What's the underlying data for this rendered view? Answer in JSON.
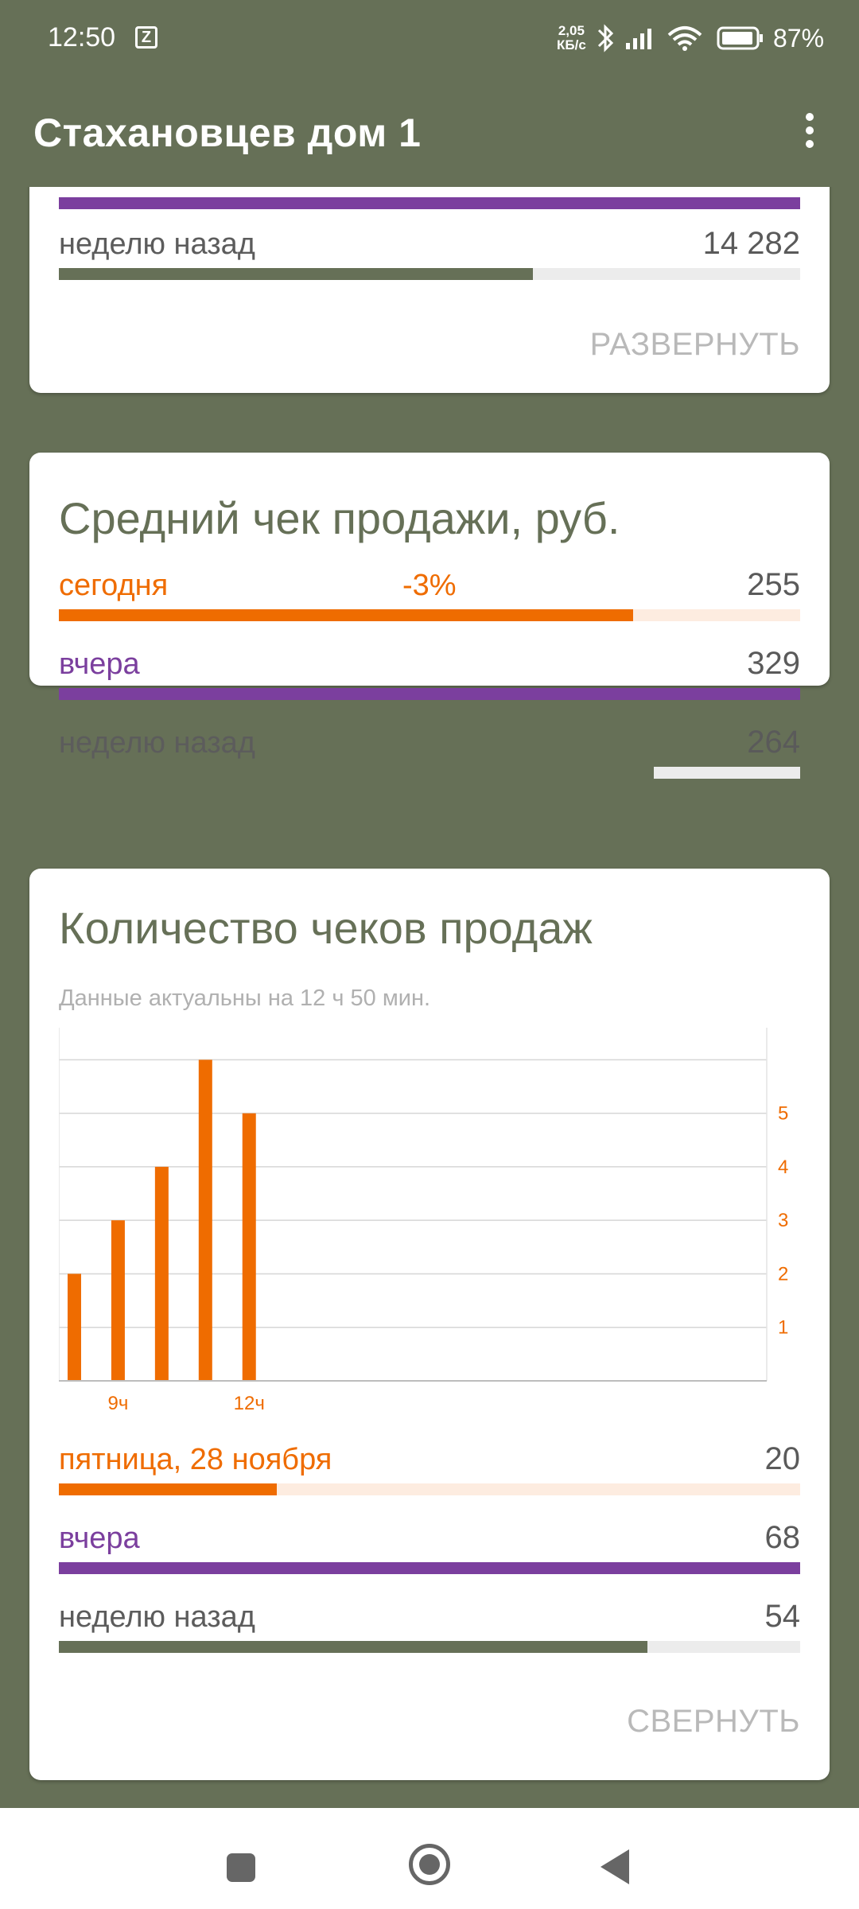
{
  "status_bar": {
    "time": "12:50",
    "notification_icon": "z-app-icon",
    "net_speed_value": "2,05",
    "net_speed_unit": "КБ/с",
    "battery": "87%",
    "icons": [
      "bluetooth-icon",
      "signal-icon",
      "wifi-icon",
      "battery-icon"
    ]
  },
  "app_bar": {
    "title": "Стахановцев дом 1",
    "menu_icon": "more-vert-icon"
  },
  "colors": {
    "header_bg": "#667057",
    "today": "#ef6c00",
    "today_track": "#fdece0",
    "yesterday": "#7b3f9e",
    "week_ago": "#667057",
    "track": "#ececec"
  },
  "card_revenue_partial": {
    "rows": [
      {
        "label": "неделю назад",
        "value": "14 282",
        "fill_fraction": 0.64
      }
    ],
    "expand_label": "РАЗВЕРНУТЬ"
  },
  "card_avg_check": {
    "title": "Средний чек продажи, руб.",
    "rows": [
      {
        "label": "сегодня",
        "delta": "-3%",
        "value": "255",
        "fill_fraction": 0.775
      },
      {
        "label": "вчера",
        "value": "329",
        "fill_fraction": 1.0
      },
      {
        "label": "неделю назад",
        "value": "264",
        "fill_fraction": 0.803
      }
    ]
  },
  "card_check_count": {
    "title": "Количество чеков продаж",
    "subtitle": "Данные актуальны на 12 ч 50 мин.",
    "rows": [
      {
        "label": "пятница, 28 ноября",
        "value": "20",
        "fill_fraction": 0.294
      },
      {
        "label": "вчера",
        "value": "68",
        "fill_fraction": 1.0
      },
      {
        "label": "неделю назад",
        "value": "54",
        "fill_fraction": 0.794
      }
    ],
    "collapse_label": "СВЕРНУТЬ"
  },
  "chart_data": {
    "type": "bar",
    "x": [
      8,
      9,
      10,
      11,
      12
    ],
    "values": [
      2,
      3,
      4,
      6,
      5
    ],
    "x_ticks": [
      {
        "x": 9,
        "label": "9ч"
      },
      {
        "x": 12,
        "label": "12ч"
      }
    ],
    "y_ticks": [
      "1",
      "2",
      "3",
      "4",
      "5"
    ],
    "ylim": [
      0,
      6.6
    ],
    "xlim": [
      7.8,
      24
    ],
    "y_axis_side": "right",
    "grid": true
  },
  "nav_bar": {
    "buttons": [
      "recents-button",
      "home-button",
      "back-button"
    ]
  }
}
